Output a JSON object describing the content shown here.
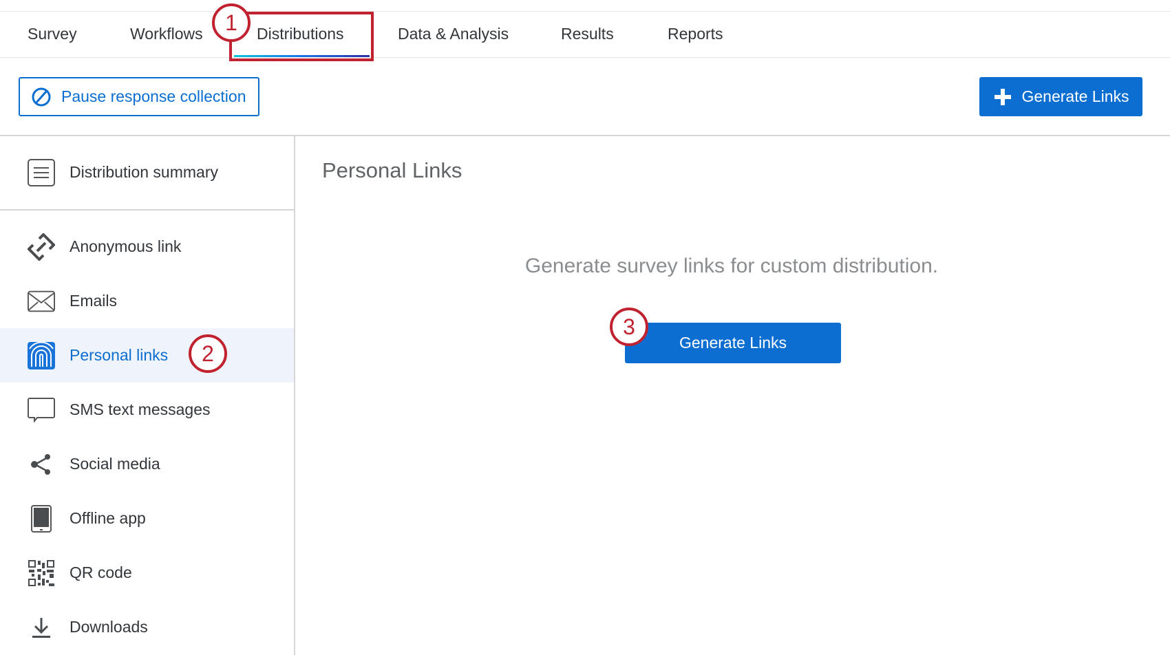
{
  "tabs": [
    {
      "label": "Survey"
    },
    {
      "label": "Workflows"
    },
    {
      "label": "Distributions",
      "active": true
    },
    {
      "label": "Data & Analysis"
    },
    {
      "label": "Results"
    },
    {
      "label": "Reports"
    }
  ],
  "toolbar": {
    "pause_label": "Pause response collection",
    "generate_label": "Generate Links"
  },
  "sidebar": {
    "summary": {
      "label": "Distribution summary",
      "icon": "list-icon"
    },
    "items": [
      {
        "label": "Anonymous link",
        "icon": "link-icon"
      },
      {
        "label": "Emails",
        "icon": "envelope-icon"
      },
      {
        "label": "Personal links",
        "icon": "fingerprint-icon",
        "active": true
      },
      {
        "label": "SMS text messages",
        "icon": "speech-bubble-icon"
      },
      {
        "label": "Social media",
        "icon": "share-icon"
      },
      {
        "label": "Offline app",
        "icon": "tablet-icon"
      },
      {
        "label": "QR code",
        "icon": "qr-code-icon"
      },
      {
        "label": "Downloads",
        "icon": "download-icon"
      }
    ]
  },
  "main": {
    "title": "Personal Links",
    "message": "Generate survey links for custom distribution.",
    "button_label": "Generate Links"
  },
  "callouts": [
    "1",
    "2",
    "3"
  ],
  "colors": {
    "accent": "#0b6ed0",
    "callout": "#c0222f",
    "active_bg": "#eef3fc"
  }
}
